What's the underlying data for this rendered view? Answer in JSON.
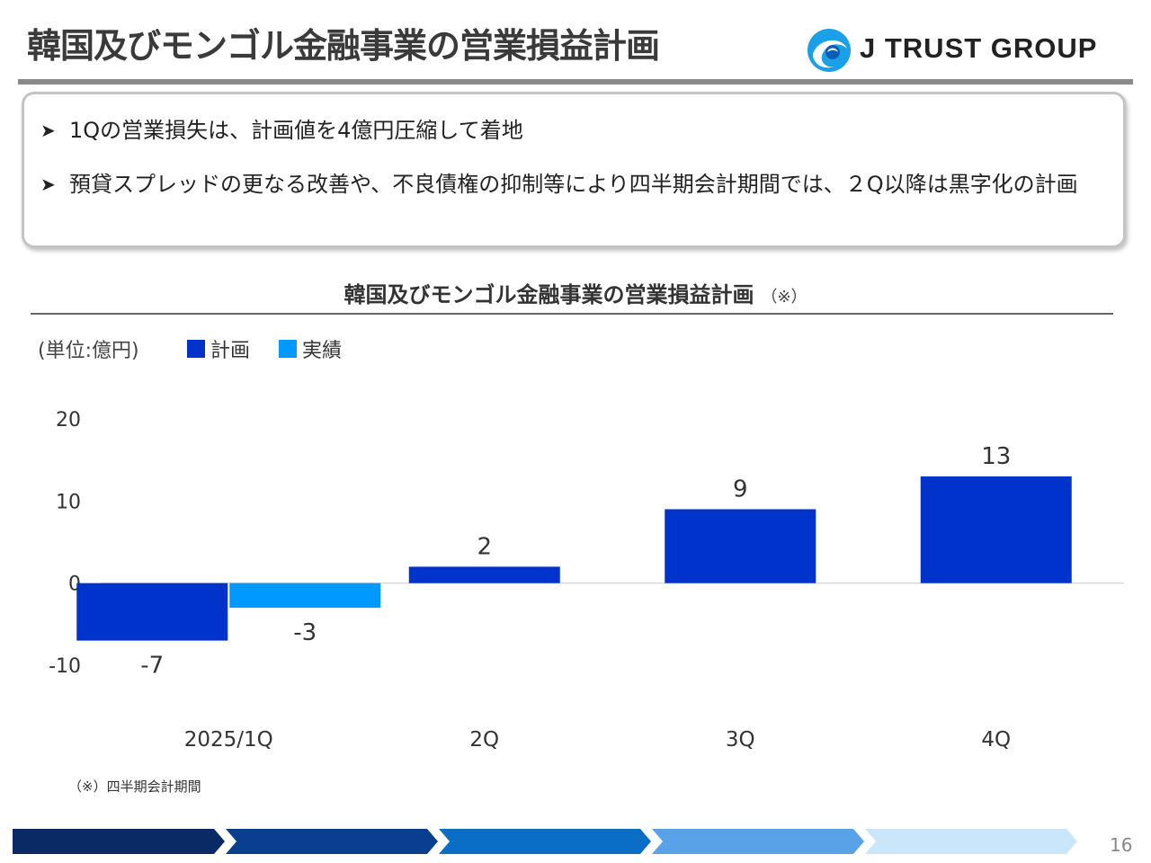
{
  "header": {
    "title": "韓国及びモンゴル金融事業の営業損益計画",
    "logo_text": "J TRUST GROUP"
  },
  "summary": {
    "bullet_marker": "➤",
    "bullets": [
      "1Qの営業損失は、計画値を4億円圧縮して着地",
      "預貸スプレッドの更なる改善や、不良債権の抑制等により四半期会計期間では、２Q以降は黒字化の計画"
    ]
  },
  "chart_data": {
    "type": "bar",
    "title": "韓国及びモンゴル金融事業の営業損益計画",
    "title_note": "（※）",
    "unit_label": "(単位:億円)",
    "categories": [
      "2025/1Q",
      "2Q",
      "3Q",
      "4Q"
    ],
    "series": [
      {
        "name": "計画",
        "color": "#0033CC",
        "values": [
          -7,
          2,
          9,
          13
        ]
      },
      {
        "name": "実績",
        "color": "#0099FF",
        "values": [
          -3,
          null,
          null,
          null
        ]
      }
    ],
    "ylim": [
      -10,
      20
    ],
    "yticks": [
      20,
      10,
      0,
      -10
    ],
    "legend_position": "top-left",
    "grid": false
  },
  "footnote": "（※）四半期会計期間",
  "footer": {
    "page_number": "16",
    "arrow_colors": [
      "#0A2A66",
      "#0A3F8F",
      "#0A6FC4",
      "#5AA2E8",
      "#C9E6FA"
    ]
  }
}
